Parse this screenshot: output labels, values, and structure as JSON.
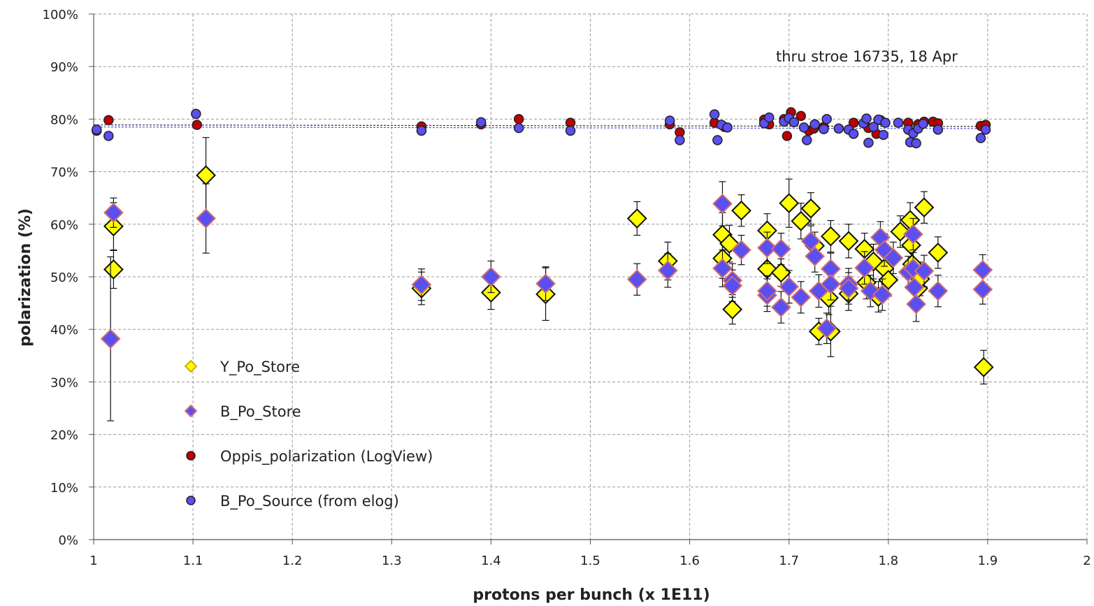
{
  "chart_data": {
    "type": "scatter",
    "xlabel": "protons per bunch (x 1E11)",
    "ylabel": "polarization (%)",
    "xlim": [
      1,
      2
    ],
    "ylim": [
      0,
      100
    ],
    "x_ticks": [
      "1",
      "1.1",
      "1.2",
      "1.3",
      "1.4",
      "1.5",
      "1.6",
      "1.7",
      "1.8",
      "1.9",
      "2"
    ],
    "y_ticks": [
      "0%",
      "10%",
      "20%",
      "30%",
      "40%",
      "50%",
      "60%",
      "70%",
      "80%",
      "90%",
      "100%"
    ],
    "grid": true,
    "legend_position": "bottom-left",
    "annotation": "thru stroe 16735, 18 Apr",
    "trend_lines": [
      {
        "series": "Oppis_polarization (LogView)",
        "color": "#333333",
        "y": [
          78.9,
          78.6
        ]
      },
      {
        "series": "B_Po_Source (from elog)",
        "color": "#5a5ad8",
        "y": [
          78.5,
          78.2
        ]
      }
    ],
    "series": [
      {
        "name": "Y_Po_Store",
        "marker": "diamond",
        "fill": "#ffff00",
        "stroke": "#111111",
        "points": [
          [
            1.02,
            59.6,
            4.5
          ],
          [
            1.02,
            51.4,
            3.6
          ],
          [
            1.113,
            69.3,
            7.2
          ],
          [
            1.33,
            47.8,
            3.1
          ],
          [
            1.4,
            47.0,
            3.2
          ],
          [
            1.455,
            46.7,
            5.0
          ],
          [
            1.547,
            61.1,
            3.2
          ],
          [
            1.578,
            53.0,
            3.6
          ],
          [
            1.633,
            58.0,
            4.2
          ],
          [
            1.633,
            53.5,
            3.8
          ],
          [
            1.64,
            56.3,
            3.5
          ],
          [
            1.643,
            43.8,
            2.8
          ],
          [
            1.652,
            62.6,
            3.0
          ],
          [
            1.678,
            58.8,
            3.2
          ],
          [
            1.678,
            51.5,
            3.0
          ],
          [
            1.692,
            50.8,
            2.6
          ],
          [
            1.7,
            64.0,
            4.6
          ],
          [
            1.712,
            60.6,
            3.4
          ],
          [
            1.722,
            63.0,
            3.0
          ],
          [
            1.726,
            55.9,
            2.6
          ],
          [
            1.73,
            39.6,
            2.5
          ],
          [
            1.74,
            46.0,
            3.2
          ],
          [
            1.742,
            57.7,
            3.0
          ],
          [
            1.742,
            39.6,
            4.8
          ],
          [
            1.76,
            56.8,
            3.2
          ],
          [
            1.76,
            46.8,
            3.2
          ],
          [
            1.776,
            55.3,
            3.0
          ],
          [
            1.778,
            48.9,
            3.1
          ],
          [
            1.785,
            52.9,
            3.3
          ],
          [
            1.79,
            46.2,
            2.9
          ],
          [
            1.796,
            51.6,
            3.0
          ],
          [
            1.8,
            49.4,
            3.1
          ],
          [
            1.812,
            58.6,
            3.0
          ],
          [
            1.822,
            60.8,
            3.3
          ],
          [
            1.823,
            56.0,
            3.2
          ],
          [
            1.824,
            52.4,
            3.5
          ],
          [
            1.83,
            47.8,
            3.1
          ],
          [
            1.832,
            49.6,
            3.2
          ],
          [
            1.836,
            63.2,
            3.0
          ],
          [
            1.85,
            54.6,
            3.0
          ],
          [
            1.896,
            32.8,
            3.2
          ]
        ]
      },
      {
        "name": "B_Po_Store",
        "marker": "diamond",
        "fill": "#5a4ff0",
        "stroke": "#d07070",
        "points": [
          [
            1.02,
            62.2,
            2.8
          ],
          [
            1.017,
            38.2,
            15.6
          ],
          [
            1.113,
            61.1,
            6.6
          ],
          [
            1.33,
            48.5,
            3.0
          ],
          [
            1.4,
            50.0,
            3.0
          ],
          [
            1.455,
            48.7,
            3.2
          ],
          [
            1.547,
            49.5,
            3.0
          ],
          [
            1.578,
            51.2,
            3.2
          ],
          [
            1.633,
            63.9,
            4.2
          ],
          [
            1.633,
            51.6,
            3.5
          ],
          [
            1.643,
            49.3,
            3.2
          ],
          [
            1.643,
            48.3,
            3.0
          ],
          [
            1.652,
            55.1,
            2.8
          ],
          [
            1.678,
            55.5,
            3.0
          ],
          [
            1.678,
            46.5,
            3.1
          ],
          [
            1.678,
            47.3,
            2.9
          ],
          [
            1.692,
            55.3,
            3.0
          ],
          [
            1.692,
            44.2,
            3.0
          ],
          [
            1.7,
            48.1,
            3.1
          ],
          [
            1.712,
            46.1,
            3.0
          ],
          [
            1.722,
            56.8,
            2.9
          ],
          [
            1.726,
            53.9,
            3.0
          ],
          [
            1.73,
            47.3,
            3.1
          ],
          [
            1.738,
            40.2,
            2.9
          ],
          [
            1.742,
            51.5,
            3.0
          ],
          [
            1.742,
            48.6,
            3.0
          ],
          [
            1.76,
            48.6,
            3.0
          ],
          [
            1.76,
            47.8,
            3.0
          ],
          [
            1.776,
            51.7,
            3.1
          ],
          [
            1.782,
            47.3,
            3.0
          ],
          [
            1.792,
            57.5,
            3.0
          ],
          [
            1.794,
            46.6,
            3.0
          ],
          [
            1.796,
            55.1,
            3.1
          ],
          [
            1.805,
            53.6,
            3.0
          ],
          [
            1.82,
            50.9,
            3.0
          ],
          [
            1.825,
            58.1,
            3.0
          ],
          [
            1.825,
            51.6,
            3.0
          ],
          [
            1.826,
            48.0,
            3.0
          ],
          [
            1.828,
            44.8,
            3.3
          ],
          [
            1.836,
            51.1,
            3.0
          ],
          [
            1.85,
            47.3,
            3.0
          ],
          [
            1.895,
            51.3,
            2.9
          ],
          [
            1.895,
            47.6,
            2.8
          ]
        ]
      },
      {
        "name": "Oppis_polarization (LogView)",
        "marker": "circle",
        "fill": "#c00000",
        "stroke": "#222222",
        "points": [
          [
            1.003,
            77.8
          ],
          [
            1.015,
            79.8
          ],
          [
            1.104,
            78.9
          ],
          [
            1.33,
            78.6
          ],
          [
            1.39,
            79.0
          ],
          [
            1.428,
            80.0
          ],
          [
            1.48,
            79.3
          ],
          [
            1.58,
            79.0
          ],
          [
            1.59,
            77.5
          ],
          [
            1.625,
            79.3
          ],
          [
            1.635,
            78.5
          ],
          [
            1.675,
            79.9
          ],
          [
            1.68,
            79.0
          ],
          [
            1.695,
            80.0
          ],
          [
            1.698,
            76.8
          ],
          [
            1.702,
            81.3
          ],
          [
            1.712,
            80.6
          ],
          [
            1.72,
            77.8
          ],
          [
            1.725,
            78.2
          ],
          [
            1.735,
            78.5
          ],
          [
            1.765,
            79.3
          ],
          [
            1.78,
            78.3
          ],
          [
            1.788,
            77.2
          ],
          [
            1.792,
            79.8
          ],
          [
            1.82,
            79.3
          ],
          [
            1.83,
            79.0
          ],
          [
            1.836,
            79.5
          ],
          [
            1.845,
            79.5
          ],
          [
            1.85,
            79.2
          ],
          [
            1.893,
            78.7
          ],
          [
            1.898,
            78.9
          ]
        ]
      },
      {
        "name": "B_Po_Source (from elog)",
        "marker": "circle",
        "fill": "#5a4ff0",
        "stroke": "#222222",
        "points": [
          [
            1.003,
            78.0
          ],
          [
            1.015,
            76.8
          ],
          [
            1.103,
            81.0
          ],
          [
            1.33,
            77.8
          ],
          [
            1.39,
            79.4
          ],
          [
            1.428,
            78.3
          ],
          [
            1.48,
            77.8
          ],
          [
            1.58,
            79.7
          ],
          [
            1.59,
            76.0
          ],
          [
            1.625,
            80.9
          ],
          [
            1.628,
            76.0
          ],
          [
            1.632,
            78.9
          ],
          [
            1.638,
            78.4
          ],
          [
            1.675,
            79.2
          ],
          [
            1.68,
            80.3
          ],
          [
            1.695,
            79.5
          ],
          [
            1.7,
            80.2
          ],
          [
            1.705,
            79.4
          ],
          [
            1.715,
            78.4
          ],
          [
            1.718,
            76.0
          ],
          [
            1.726,
            79.0
          ],
          [
            1.735,
            78.1
          ],
          [
            1.738,
            80.0
          ],
          [
            1.75,
            78.2
          ],
          [
            1.76,
            78.0
          ],
          [
            1.765,
            77.2
          ],
          [
            1.775,
            79.2
          ],
          [
            1.778,
            80.1
          ],
          [
            1.78,
            75.5
          ],
          [
            1.785,
            78.5
          ],
          [
            1.79,
            79.9
          ],
          [
            1.795,
            77.0
          ],
          [
            1.797,
            79.3
          ],
          [
            1.81,
            79.3
          ],
          [
            1.82,
            78.0
          ],
          [
            1.822,
            75.6
          ],
          [
            1.825,
            77.3
          ],
          [
            1.828,
            75.4
          ],
          [
            1.83,
            78.2
          ],
          [
            1.835,
            79.1
          ],
          [
            1.85,
            78.0
          ],
          [
            1.893,
            76.4
          ],
          [
            1.898,
            78.0
          ]
        ]
      }
    ]
  }
}
